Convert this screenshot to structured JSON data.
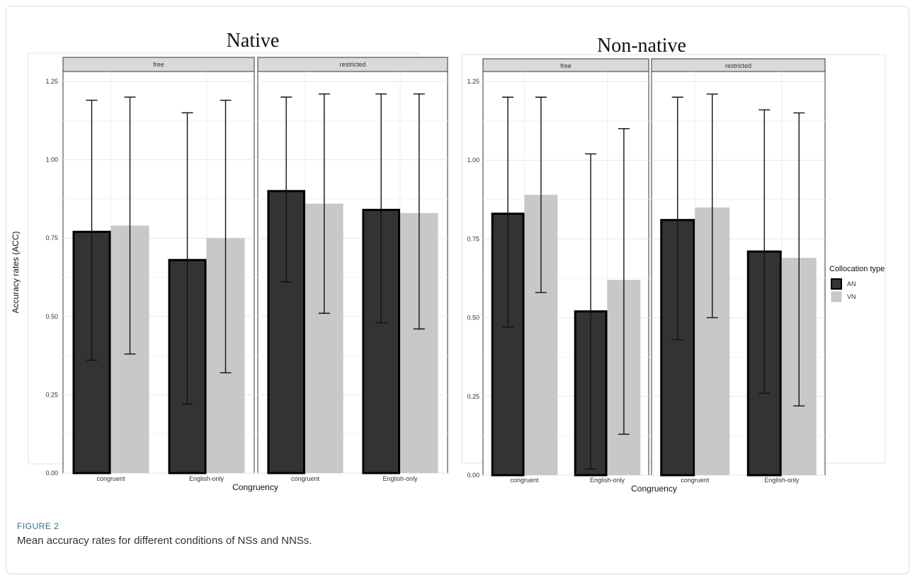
{
  "figure": {
    "label": "FIGURE 2",
    "caption": "Mean accuracy rates for different conditions of NSs and NNSs."
  },
  "legend": {
    "title": "Collocation type",
    "items": [
      {
        "key": "AN",
        "color": "#333333"
      },
      {
        "key": "VN",
        "color": "#c8c8c8"
      }
    ]
  },
  "chart_data": [
    {
      "type": "bar",
      "title": "Native",
      "xlabel": "Congruency",
      "ylabel": "Accuracy rates (ACC)",
      "ylim": [
        0,
        1.25
      ],
      "yticks": [
        "0.00",
        "0.25",
        "0.50",
        "0.75",
        "1.00",
        "1.25"
      ],
      "facets": [
        {
          "label": "free",
          "categories": [
            "congruent",
            "English-only"
          ],
          "series": [
            {
              "name": "AN",
              "values": [
                0.77,
                0.68
              ],
              "error_low": [
                0.36,
                0.22
              ],
              "error_high": [
                1.19,
                1.15
              ]
            },
            {
              "name": "VN",
              "values": [
                0.79,
                0.75
              ],
              "error_low": [
                0.38,
                0.32
              ],
              "error_high": [
                1.2,
                1.19
              ]
            }
          ]
        },
        {
          "label": "restricted",
          "categories": [
            "congruent",
            "English-only"
          ],
          "series": [
            {
              "name": "AN",
              "values": [
                0.9,
                0.84
              ],
              "error_low": [
                0.61,
                0.48
              ],
              "error_high": [
                1.2,
                1.21
              ]
            },
            {
              "name": "VN",
              "values": [
                0.86,
                0.83
              ],
              "error_low": [
                0.51,
                0.46
              ],
              "error_high": [
                1.21,
                1.21
              ]
            }
          ]
        }
      ]
    },
    {
      "type": "bar",
      "title": "Non-native",
      "xlabel": "Congruency",
      "ylabel": "",
      "ylim": [
        0,
        1.25
      ],
      "yticks": [
        "0.00",
        "0.25",
        "0.50",
        "0.75",
        "1.00",
        "1.25"
      ],
      "facets": [
        {
          "label": "free",
          "categories": [
            "congruent",
            "English-only"
          ],
          "series": [
            {
              "name": "AN",
              "values": [
                0.83,
                0.52
              ],
              "error_low": [
                0.47,
                0.02
              ],
              "error_high": [
                1.2,
                1.02
              ]
            },
            {
              "name": "VN",
              "values": [
                0.89,
                0.62
              ],
              "error_low": [
                0.58,
                0.13
              ],
              "error_high": [
                1.2,
                1.1
              ]
            }
          ]
        },
        {
          "label": "restricted",
          "categories": [
            "congruent",
            "English-only"
          ],
          "series": [
            {
              "name": "AN",
              "values": [
                0.81,
                0.71
              ],
              "error_low": [
                0.43,
                0.26
              ],
              "error_high": [
                1.2,
                1.16
              ]
            },
            {
              "name": "VN",
              "values": [
                0.85,
                0.69
              ],
              "error_low": [
                0.5,
                0.22
              ],
              "error_high": [
                1.21,
                1.15
              ]
            }
          ]
        }
      ]
    }
  ]
}
